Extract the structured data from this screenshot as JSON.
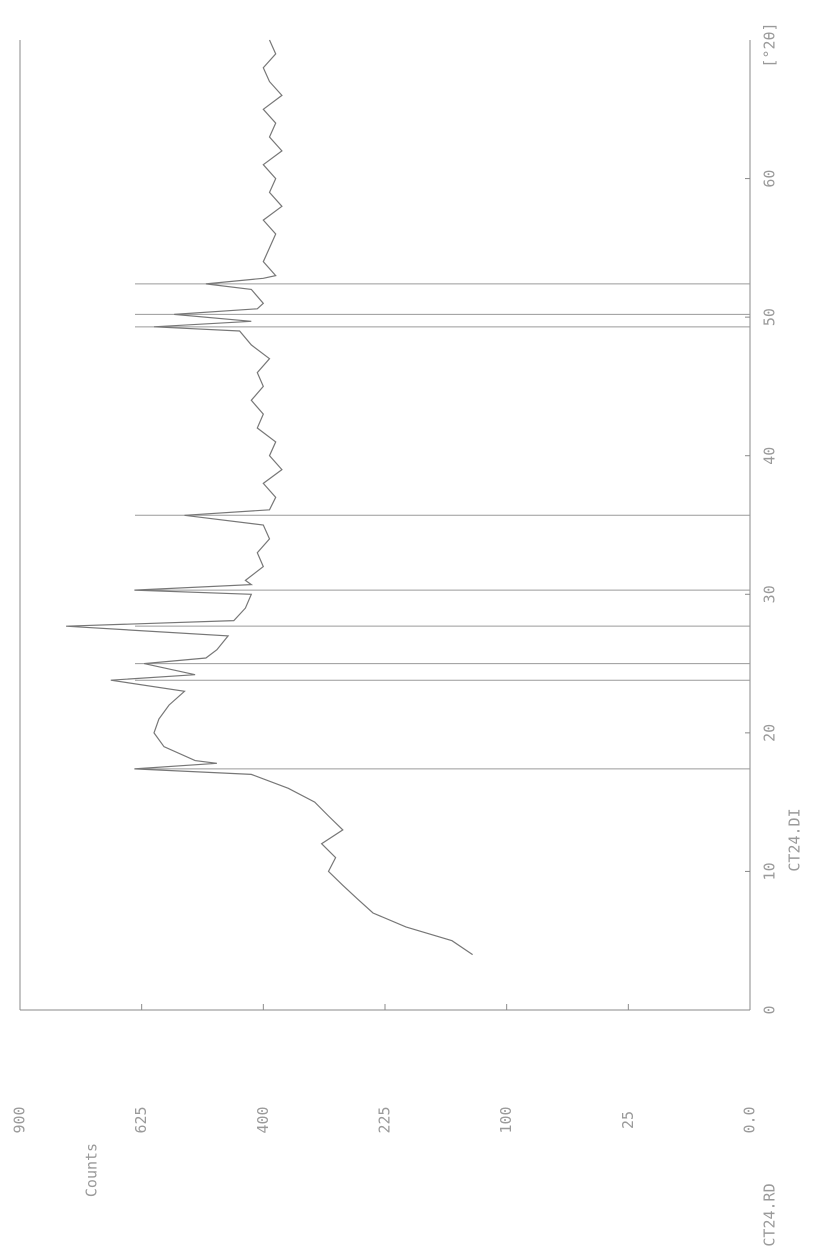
{
  "chart_data": {
    "type": "line",
    "x_label": "[°2θ]",
    "y_label": "Counts",
    "file_raw": "CT24.RD",
    "file_peaks": "CT24.DI",
    "y_scale": "sqrt",
    "color": "#777777",
    "xlim": [
      0,
      70
    ],
    "xticks": [
      0,
      10,
      20,
      30,
      40,
      50,
      60
    ],
    "ylim": [
      0,
      900
    ],
    "yticks": [
      {
        "value": 0,
        "label": "0.0"
      },
      25,
      100,
      225,
      400,
      625,
      900
    ],
    "x": [
      4,
      5,
      6,
      7,
      8,
      9,
      10,
      11,
      12,
      13,
      14,
      15,
      16,
      17,
      17.4,
      17.8,
      18,
      19,
      20,
      21,
      22,
      23,
      23.8,
      24.2,
      25,
      25.4,
      26,
      27,
      27.7,
      28.1,
      29,
      30,
      30.3,
      30.7,
      31,
      32,
      33,
      34,
      35,
      35.7,
      36.1,
      37,
      38,
      39,
      40,
      41,
      42,
      43,
      44,
      45,
      46,
      47,
      48,
      49,
      49.3,
      49.7,
      50.2,
      50.6,
      51,
      52,
      52.4,
      52.8,
      53,
      54,
      55,
      56,
      57,
      58,
      59,
      60,
      61,
      62,
      63,
      64,
      65,
      66,
      67,
      68,
      69,
      70
    ],
    "values": [
      130,
      150,
      200,
      240,
      260,
      280,
      300,
      290,
      310,
      280,
      300,
      320,
      360,
      420,
      640,
      480,
      520,
      580,
      600,
      590,
      570,
      540,
      690,
      520,
      620,
      500,
      480,
      460,
      790,
      450,
      430,
      420,
      640,
      420,
      430,
      400,
      410,
      390,
      400,
      540,
      390,
      380,
      400,
      370,
      390,
      380,
      410,
      400,
      420,
      400,
      410,
      390,
      420,
      440,
      600,
      420,
      560,
      410,
      400,
      420,
      500,
      400,
      380,
      400,
      390,
      380,
      400,
      370,
      390,
      380,
      400,
      370,
      390,
      380,
      400,
      370,
      390,
      400,
      380,
      390
    ],
    "peak_markers": [
      17.4,
      23.8,
      25,
      27.7,
      30.3,
      35.7,
      49.3,
      50.2,
      52.4
    ]
  }
}
